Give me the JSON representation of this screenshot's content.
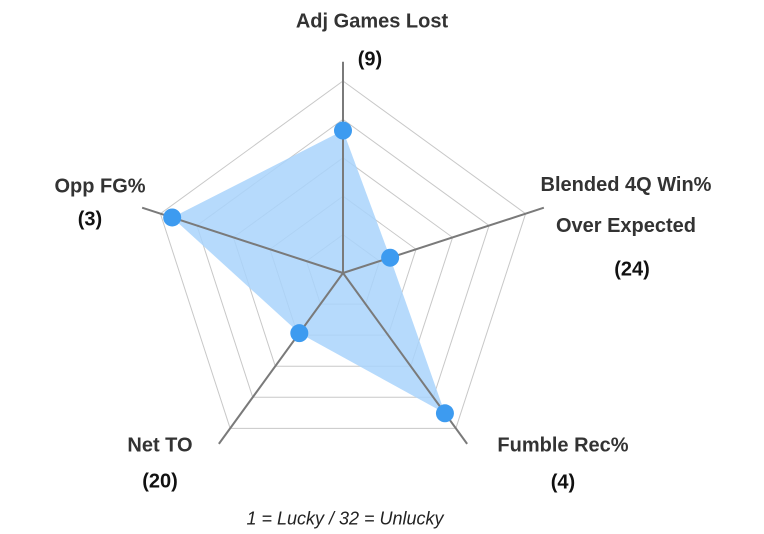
{
  "chart_data": {
    "type": "radar",
    "categories": [
      "Adj Games Lost",
      "Blended 4Q Win% Over Expected",
      "Fumble Rec%",
      "Net TO",
      "Opp FG%"
    ],
    "values": [
      9,
      24,
      4,
      20,
      3
    ],
    "value_labels": [
      "(9)",
      "(24)",
      "(4)",
      "(20)",
      "(3)"
    ],
    "rlim": [
      32,
      1
    ],
    "color": "#3d9bf0",
    "fill_color": "#a9d3fb",
    "annotation": "1 = Lucky / 32 = Unlucky"
  }
}
